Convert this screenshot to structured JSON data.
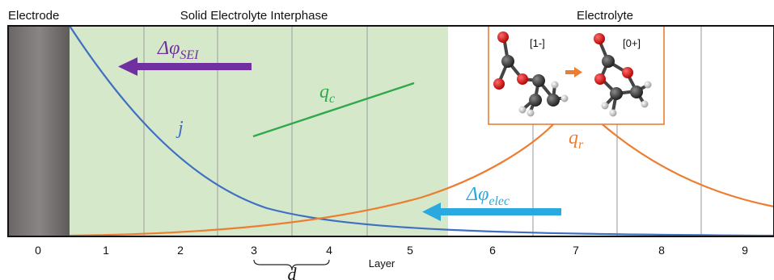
{
  "headers": {
    "electrode": "Electrode",
    "sei": "Solid Electrolyte Interphase",
    "electrolyte": "Electrolyte"
  },
  "axis": {
    "title": "Layer",
    "ticks": [
      "0",
      "1",
      "2",
      "3",
      "4",
      "5",
      "6",
      "7",
      "8",
      "9"
    ],
    "spacing_label": "d"
  },
  "labels": {
    "dphi_sei": {
      "base": "Δφ",
      "sub": "SEI"
    },
    "dphi_elec": {
      "base": "Δφ",
      "sub": "elec"
    },
    "q_c": {
      "base": "q",
      "sub": "c"
    },
    "q_r": {
      "base": "q",
      "sub": "r"
    },
    "j": "j"
  },
  "inset": {
    "charge_left": "[1-]",
    "charge_right": "[0+]"
  },
  "colors": {
    "electrode": "#767171",
    "sei_fill": "#d5e8c9",
    "current_j": "#3f6fc3",
    "reaction_qr": "#ed7d31",
    "charge_qc": "#2fa84f",
    "dphi_sei": "#7030a0",
    "dphi_elec": "#29a9e0",
    "inset_border": "#ed7d31"
  }
}
